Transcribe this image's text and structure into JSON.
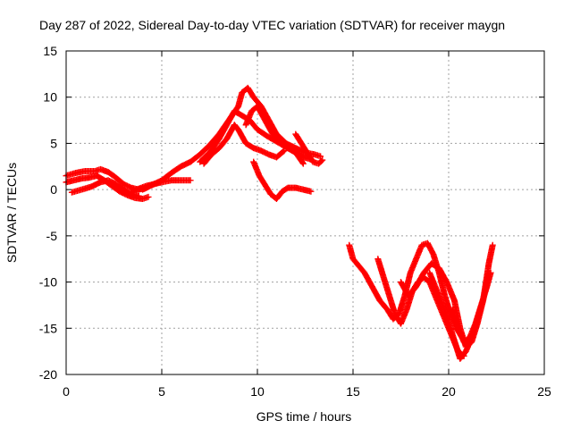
{
  "chart_data": {
    "type": "scatter",
    "title": "Day 287 of 2022, Sidereal Day-to-day VTEC variation (SDTVAR) for receiver maygn",
    "xlabel": "GPS time / hours",
    "ylabel": "SDTVAR / TECUs",
    "xlim": [
      0,
      25
    ],
    "ylim": [
      -20,
      15
    ],
    "xticks": [
      "0",
      "5",
      "10",
      "15",
      "20",
      "25"
    ],
    "yticks": [
      "15",
      "10",
      "5",
      "0",
      "-5",
      "-10",
      "-15",
      "-20"
    ],
    "grid": true,
    "marker": "+",
    "color": "#ff0000",
    "series": [
      {
        "name": "arc-1",
        "x": [
          0.0,
          0.5,
          1.0,
          1.5,
          1.8,
          2.2,
          2.6,
          3.0,
          3.4,
          3.8,
          4.2
        ],
        "y": [
          1.5,
          1.8,
          2.0,
          2.0,
          2.2,
          1.9,
          1.3,
          0.6,
          0.2,
          0.0,
          0.2
        ]
      },
      {
        "name": "arc-2",
        "x": [
          0.0,
          0.4,
          0.8,
          1.2,
          1.6,
          2.0,
          2.4,
          2.8,
          3.2,
          3.6,
          4.0,
          4.3
        ],
        "y": [
          0.8,
          1.0,
          1.2,
          1.3,
          1.5,
          1.0,
          0.4,
          -0.2,
          -0.6,
          -0.9,
          -1.0,
          -0.8
        ]
      },
      {
        "name": "arc-3",
        "x": [
          0.3,
          0.8,
          1.3,
          1.8,
          2.2,
          2.6,
          3.0,
          3.4,
          3.8
        ],
        "y": [
          -0.3,
          0.0,
          0.3,
          0.8,
          1.0,
          0.6,
          0.0,
          -0.5,
          -0.7
        ]
      },
      {
        "name": "arc-4",
        "x": [
          3.4,
          3.8,
          4.2,
          4.6,
          5.0,
          5.5,
          6.0,
          6.5
        ],
        "y": [
          -0.3,
          0.1,
          0.4,
          0.6,
          0.8,
          1.0,
          1.0,
          1.0
        ]
      },
      {
        "name": "arc-5",
        "x": [
          4.0,
          4.5,
          5.0,
          5.5,
          6.0,
          6.5,
          7.0,
          7.5,
          8.0,
          8.5,
          9.0,
          9.2,
          9.5,
          9.8,
          10.2,
          10.6,
          11.0,
          11.5,
          12.0,
          12.5,
          13.0,
          13.3
        ],
        "y": [
          0.0,
          0.5,
          1.0,
          1.8,
          2.5,
          3.0,
          3.8,
          4.8,
          6.0,
          7.5,
          9.0,
          10.5,
          11.0,
          10.0,
          9.0,
          7.5,
          6.0,
          5.0,
          4.5,
          4.0,
          3.8,
          3.6
        ]
      },
      {
        "name": "arc-6",
        "x": [
          7.0,
          7.5,
          8.0,
          8.4,
          8.8,
          9.2,
          9.6,
          10.0,
          10.5,
          11.0,
          11.5,
          12.0,
          12.4
        ],
        "y": [
          3.0,
          4.0,
          5.5,
          7.0,
          8.5,
          8.0,
          7.5,
          6.5,
          5.8,
          5.2,
          4.6,
          4.0,
          2.8
        ]
      },
      {
        "name": "arc-7",
        "x": [
          7.2,
          7.6,
          8.0,
          8.4,
          8.8,
          9.0,
          9.4,
          9.8,
          10.2,
          10.6,
          11.0,
          11.4
        ],
        "y": [
          2.8,
          3.8,
          4.5,
          5.5,
          7.0,
          6.5,
          5.0,
          4.5,
          4.2,
          3.8,
          3.5,
          4.2
        ]
      },
      {
        "name": "arc-8",
        "x": [
          9.4,
          9.7,
          10.0,
          10.4,
          10.8,
          11.2,
          11.6,
          12.0,
          12.4,
          12.8
        ],
        "y": [
          7.0,
          8.5,
          9.0,
          7.5,
          6.0,
          5.0,
          4.5,
          4.0,
          3.5,
          3.3
        ]
      },
      {
        "name": "arc-9",
        "x": [
          12.0,
          12.3,
          12.6,
          12.9,
          13.2,
          13.4
        ],
        "y": [
          6.0,
          5.0,
          4.0,
          3.0,
          2.8,
          3.2
        ]
      },
      {
        "name": "arc-10",
        "x": [
          9.8,
          10.1,
          10.4,
          10.7,
          11.0,
          11.3,
          11.6,
          12.0,
          12.4,
          12.8
        ],
        "y": [
          3.0,
          1.5,
          0.5,
          -0.5,
          -1.0,
          -0.2,
          0.2,
          0.2,
          0.0,
          -0.2
        ]
      },
      {
        "name": "arc-11",
        "x": [
          14.8,
          15.0,
          15.2,
          15.6,
          16.0,
          16.4,
          16.8,
          17.1,
          17.4,
          17.7,
          18.0,
          18.3,
          18.6,
          18.9,
          19.2,
          19.5,
          19.8,
          20.1,
          20.4,
          20.7,
          21.0
        ],
        "y": [
          -6.0,
          -7.5,
          -8.0,
          -9.0,
          -10.5,
          -12.0,
          -13.0,
          -14.0,
          -13.5,
          -11.5,
          -9.0,
          -7.5,
          -6.0,
          -5.8,
          -7.0,
          -9.0,
          -11.5,
          -13.5,
          -15.0,
          -16.0,
          -17.0
        ]
      },
      {
        "name": "arc-12",
        "x": [
          16.3,
          16.6,
          16.9,
          17.2,
          17.5,
          17.8,
          18.1,
          18.4,
          18.7,
          19.0,
          19.3,
          19.6,
          19.9,
          20.2,
          20.5,
          20.8
        ],
        "y": [
          -7.5,
          -9.5,
          -11.5,
          -13.5,
          -14.5,
          -13.0,
          -11.0,
          -10.0,
          -9.5,
          -10.0,
          -11.5,
          -13.0,
          -14.5,
          -16.0,
          -17.5,
          -18.0
        ]
      },
      {
        "name": "arc-13",
        "x": [
          17.5,
          17.9,
          18.3,
          18.7,
          19.1,
          19.5,
          19.9,
          20.3,
          20.6,
          20.9,
          21.2,
          21.5,
          21.8,
          22.1,
          22.3
        ],
        "y": [
          -10.0,
          -11.5,
          -10.5,
          -9.0,
          -8.0,
          -8.5,
          -10.0,
          -12.0,
          -15.0,
          -17.0,
          -16.5,
          -14.5,
          -12.0,
          -8.0,
          -6.0
        ]
      },
      {
        "name": "arc-14",
        "x": [
          19.0,
          19.4,
          19.8,
          20.1,
          20.4,
          20.6,
          20.9,
          21.2,
          21.5,
          21.8,
          22.1
        ],
        "y": [
          -9.0,
          -11.0,
          -13.0,
          -15.0,
          -17.0,
          -18.3,
          -17.5,
          -16.0,
          -14.0,
          -12.0,
          -9.0
        ]
      },
      {
        "name": "arc-15",
        "x": [
          20.2,
          20.5,
          20.8,
          21.1,
          21.4,
          21.7,
          22.0,
          22.2
        ],
        "y": [
          -13.0,
          -15.0,
          -16.5,
          -16.0,
          -14.5,
          -12.5,
          -10.5,
          -9.0
        ]
      }
    ]
  }
}
